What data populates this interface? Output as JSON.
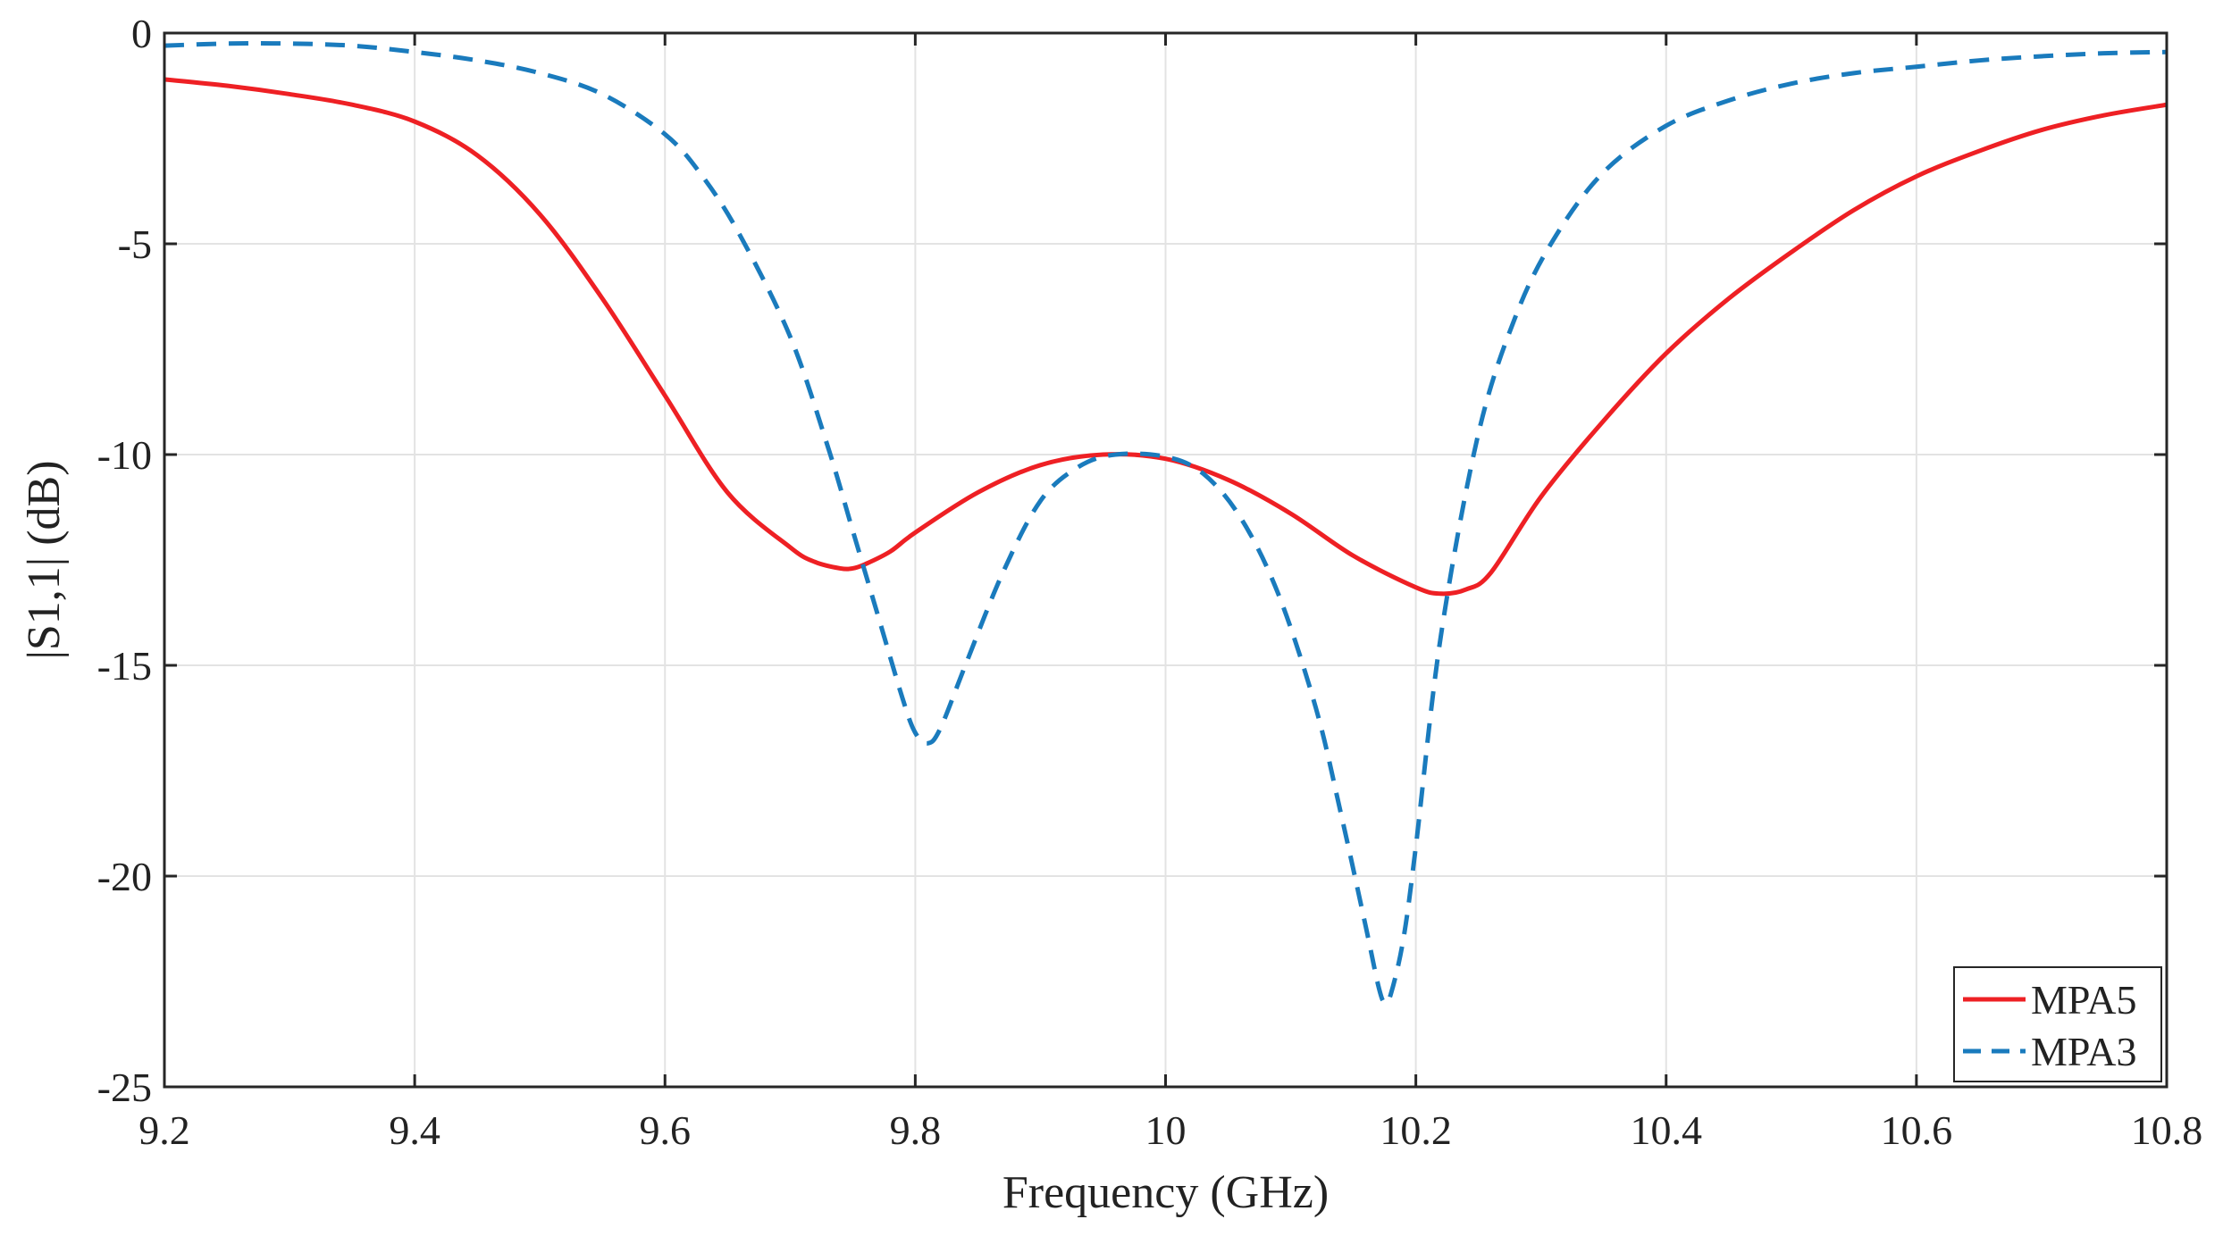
{
  "chart_data": {
    "type": "line",
    "title": "",
    "xlabel": "Frequency (GHz)",
    "ylabel": "|S1,1| (dB)",
    "xlim": [
      9.2,
      10.8
    ],
    "ylim": [
      -25,
      0
    ],
    "xticks": [
      9.2,
      9.4,
      9.6,
      9.8,
      10,
      10.2,
      10.4,
      10.6,
      10.8
    ],
    "xtick_labels": [
      "9.2",
      "9.4",
      "9.6",
      "9.8",
      "10",
      "10.2",
      "10.4",
      "10.6",
      "10.8"
    ],
    "yticks": [
      0,
      -5,
      -10,
      -15,
      -20,
      -25
    ],
    "ytick_labels": [
      "0",
      "-5",
      "-10",
      "-15",
      "-20",
      "-25"
    ],
    "grid": true,
    "legend_position": "bottom-right",
    "series": [
      {
        "name": "MPA5",
        "color": "#ee2024",
        "dash": "solid",
        "x": [
          9.2,
          9.25,
          9.3,
          9.35,
          9.4,
          9.45,
          9.5,
          9.55,
          9.6,
          9.65,
          9.7,
          9.72,
          9.74,
          9.75,
          9.76,
          9.78,
          9.8,
          9.85,
          9.9,
          9.95,
          10,
          10.05,
          10.1,
          10.15,
          10.2,
          10.22,
          10.24,
          10.26,
          10.3,
          10.35,
          10.4,
          10.45,
          10.5,
          10.55,
          10.6,
          10.65,
          10.7,
          10.75,
          10.8
        ],
        "y": [
          -1.1,
          -1.25,
          -1.45,
          -1.7,
          -2.1,
          -2.9,
          -4.3,
          -6.3,
          -8.6,
          -10.9,
          -12.2,
          -12.55,
          -12.7,
          -12.7,
          -12.6,
          -12.3,
          -11.85,
          -10.9,
          -10.25,
          -10.0,
          -10.1,
          -10.6,
          -11.4,
          -12.4,
          -13.15,
          -13.3,
          -13.2,
          -12.8,
          -11.0,
          -9.2,
          -7.6,
          -6.3,
          -5.2,
          -4.2,
          -3.4,
          -2.8,
          -2.3,
          -1.95,
          -1.7
        ]
      },
      {
        "name": "MPA3",
        "color": "#1a7bbd",
        "dash": "dashed",
        "x": [
          9.2,
          9.25,
          9.3,
          9.35,
          9.4,
          9.45,
          9.5,
          9.55,
          9.6,
          9.63,
          9.66,
          9.7,
          9.73,
          9.75,
          9.77,
          9.79,
          9.8,
          9.81,
          9.82,
          9.84,
          9.87,
          9.9,
          9.93,
          9.96,
          10.0,
          10.03,
          10.06,
          10.09,
          10.12,
          10.14,
          10.16,
          10.17,
          10.175,
          10.18,
          10.19,
          10.2,
          10.22,
          10.25,
          10.28,
          10.31,
          10.35,
          10.4,
          10.45,
          10.5,
          10.55,
          10.6,
          10.65,
          10.7,
          10.75,
          10.8
        ],
        "y": [
          -0.3,
          -0.25,
          -0.25,
          -0.3,
          -0.45,
          -0.65,
          -0.95,
          -1.45,
          -2.4,
          -3.4,
          -4.8,
          -7.2,
          -9.8,
          -11.8,
          -13.8,
          -15.8,
          -16.6,
          -16.85,
          -16.5,
          -15.0,
          -12.8,
          -11.1,
          -10.3,
          -10.0,
          -10.05,
          -10.45,
          -11.5,
          -13.3,
          -16.0,
          -18.5,
          -21.2,
          -22.6,
          -23.0,
          -22.8,
          -21.5,
          -19.3,
          -14.3,
          -9.5,
          -6.7,
          -4.9,
          -3.3,
          -2.2,
          -1.6,
          -1.2,
          -0.95,
          -0.8,
          -0.65,
          -0.55,
          -0.48,
          -0.45
        ]
      }
    ]
  }
}
